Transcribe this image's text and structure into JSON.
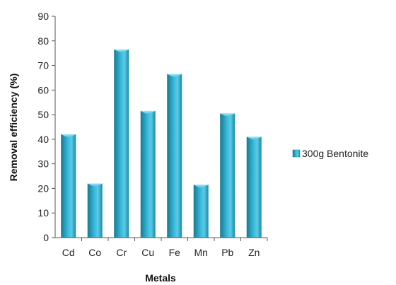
{
  "chart_data": {
    "type": "bar",
    "categories": [
      "Cd",
      "Co",
      "Cr",
      "Cu",
      "Fe",
      "Mn",
      "Pb",
      "Zn"
    ],
    "series": [
      {
        "name": "300g Bentonite",
        "values": [
          42,
          22,
          76.5,
          51.5,
          66.5,
          21.5,
          50.5,
          41
        ]
      }
    ],
    "xlabel": "Metals",
    "ylabel": "Removal efficiency (%)",
    "ylim": [
      0,
      90
    ],
    "yticks": [
      0,
      10,
      20,
      30,
      40,
      50,
      60,
      70,
      80,
      90
    ],
    "grid": false,
    "legend_position": "right",
    "colors": {
      "bar": "#2aa6c8",
      "bar_dark": "#1a7f9c",
      "bar_light": "#6fd4ec",
      "axis": "#555555"
    }
  }
}
